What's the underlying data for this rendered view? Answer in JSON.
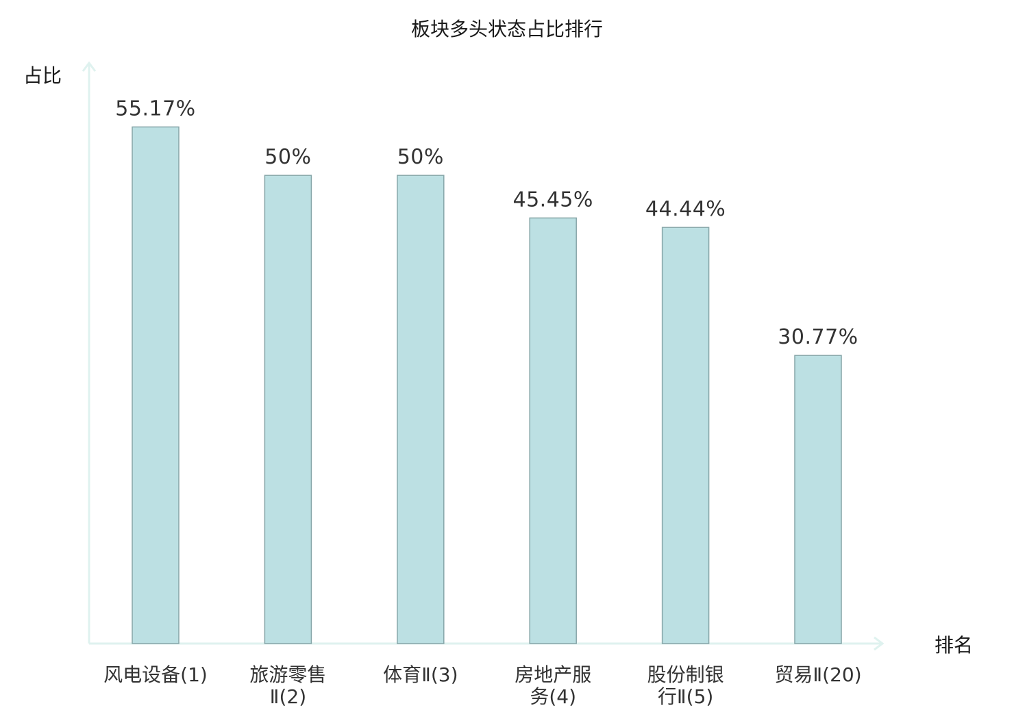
{
  "chart_data": {
    "type": "bar",
    "title": "板块多头状态占比排行",
    "ylabel": "占比",
    "xlabel": "排名",
    "ylim": [
      0,
      62
    ],
    "grid": false,
    "categories": [
      [
        "风电设备(1)"
      ],
      [
        "旅游零售",
        "Ⅱ(2)"
      ],
      [
        "体育Ⅱ(3)"
      ],
      [
        "房地产服",
        "务(4)"
      ],
      [
        "股份制银",
        "行Ⅱ(5)"
      ],
      [
        "贸易Ⅱ(20)"
      ]
    ],
    "values": [
      55.17,
      50,
      50,
      45.45,
      44.44,
      30.77
    ],
    "value_labels": [
      "55.17%",
      "50%",
      "50%",
      "45.45%",
      "44.44%",
      "30.77%"
    ],
    "highlight_index": 5,
    "colors": {
      "bar_fill": "#bce0e3",
      "bar_stroke": "#86a5a8",
      "axis": "#dff2ef",
      "highlight_text": "#d42424",
      "text": "#333333"
    }
  }
}
